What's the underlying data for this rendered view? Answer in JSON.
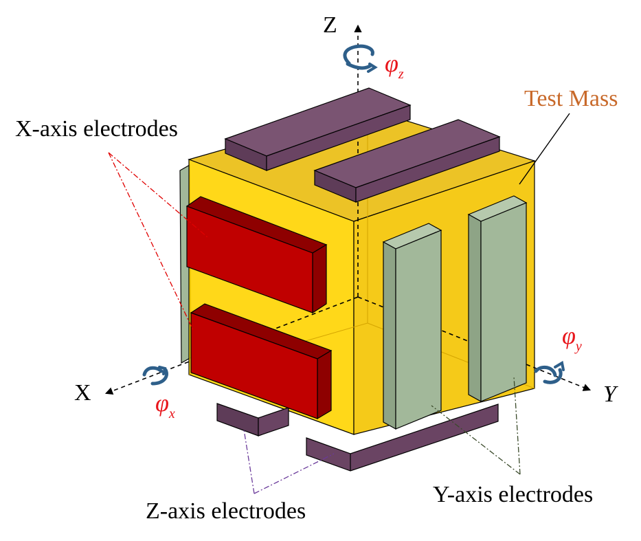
{
  "labels": {
    "z_axis": "Z",
    "x_axis": "X",
    "y_axis": "Y",
    "test_mass": "Test Mass",
    "x_electrodes": "X-axis electrodes",
    "y_electrodes": "Y-axis electrodes",
    "z_electrodes": "Z-axis electrodes",
    "phi": "φ",
    "phi_z_sub": "z",
    "phi_x_sub": "x",
    "phi_y_sub": "y"
  },
  "colors": {
    "test_mass_front": "#FFD400",
    "test_mass_side": "#F4C400",
    "test_mass_top": "#E9B800",
    "x_electrode": "#C00000",
    "x_electrode_dark": "#8E0000",
    "y_electrode": "#A2B89A",
    "z_electrode": "#6A4463",
    "rotation_arrow": "#2E5F8A",
    "phi_label": "#E8151B",
    "test_mass_label": "#C8692A",
    "x_leader": "#E00000",
    "y_leader": "#3A4A2A",
    "z_leader": "#6A3A9A"
  }
}
